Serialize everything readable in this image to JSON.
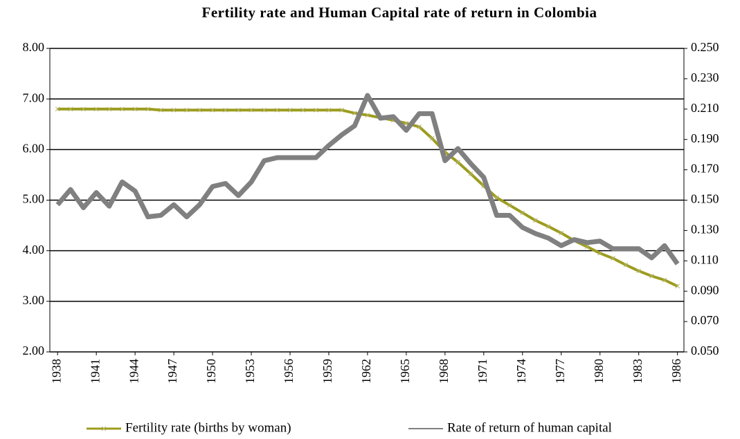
{
  "chart_data": {
    "type": "line",
    "title": "Fertility rate and Human Capital rate of return in Colombia",
    "x": [
      1938,
      1939,
      1940,
      1941,
      1942,
      1943,
      1944,
      1945,
      1946,
      1947,
      1948,
      1949,
      1950,
      1951,
      1952,
      1953,
      1954,
      1955,
      1956,
      1957,
      1958,
      1959,
      1960,
      1961,
      1962,
      1963,
      1964,
      1965,
      1966,
      1967,
      1968,
      1969,
      1970,
      1971,
      1972,
      1973,
      1974,
      1975,
      1976,
      1977,
      1978,
      1979,
      1980,
      1981,
      1982,
      1983,
      1984,
      1985,
      1986
    ],
    "xlim": [
      1937.4,
      1986.5
    ],
    "xticks": [
      1938,
      1941,
      1944,
      1947,
      1950,
      1953,
      1956,
      1959,
      1962,
      1965,
      1968,
      1971,
      1974,
      1977,
      1980,
      1983,
      1986
    ],
    "ylim": [
      2,
      8
    ],
    "yticks": [
      {
        "value": 2,
        "label": "2.00"
      },
      {
        "value": 3,
        "label": "3.00"
      },
      {
        "value": 4,
        "label": "4.00"
      },
      {
        "value": 5,
        "label": "5.00"
      },
      {
        "value": 6,
        "label": "6.00"
      },
      {
        "value": 7,
        "label": "7.00"
      },
      {
        "value": 8,
        "label": "8.00"
      }
    ],
    "y2lim": [
      0.05,
      0.25
    ],
    "y2ticks": [
      {
        "value": 0.05,
        "label": "0.050"
      },
      {
        "value": 0.07,
        "label": "0.070"
      },
      {
        "value": 0.09,
        "label": "0.090"
      },
      {
        "value": 0.11,
        "label": "0.110"
      },
      {
        "value": 0.13,
        "label": "0.130"
      },
      {
        "value": 0.15,
        "label": "0.150"
      },
      {
        "value": 0.17,
        "label": "0.170"
      },
      {
        "value": 0.19,
        "label": "0.190"
      },
      {
        "value": 0.21,
        "label": "0.210"
      },
      {
        "value": 0.23,
        "label": "0.230"
      },
      {
        "value": 0.25,
        "label": "0.250"
      }
    ],
    "grid": true,
    "legend": "bottom",
    "series": [
      {
        "name": "Fertility rate (births by woman)",
        "color": "#9c9c1e",
        "marker": "x",
        "values": [
          6.8,
          6.8,
          6.8,
          6.8,
          6.8,
          6.8,
          6.8,
          6.8,
          6.78,
          6.78,
          6.78,
          6.78,
          6.78,
          6.78,
          6.78,
          6.78,
          6.78,
          6.78,
          6.78,
          6.78,
          6.78,
          6.78,
          6.78,
          6.72,
          6.68,
          6.63,
          6.58,
          6.52,
          6.45,
          6.22,
          5.95,
          5.75,
          5.52,
          5.28,
          5.05,
          4.9,
          4.75,
          4.6,
          4.48,
          4.35,
          4.2,
          4.08,
          3.95,
          3.85,
          3.72,
          3.6,
          3.5,
          3.42,
          3.3
        ]
      },
      {
        "name": "Rate of return of human capital",
        "color": "#808080",
        "axis": "y2",
        "values": [
          0.147,
          0.157,
          0.145,
          0.155,
          0.146,
          0.162,
          0.156,
          0.139,
          0.14,
          0.147,
          0.139,
          0.147,
          0.159,
          0.161,
          0.153,
          0.162,
          0.176,
          0.178,
          0.178,
          0.178,
          0.178,
          0.186,
          0.193,
          0.199,
          0.219,
          0.204,
          0.205,
          0.196,
          0.207,
          0.207,
          0.176,
          0.184,
          0.174,
          0.165,
          0.14,
          0.14,
          0.132,
          0.128,
          0.125,
          0.12,
          0.124,
          0.122,
          0.123,
          0.118,
          0.118,
          0.118,
          0.112,
          0.12,
          0.108
        ]
      }
    ]
  }
}
